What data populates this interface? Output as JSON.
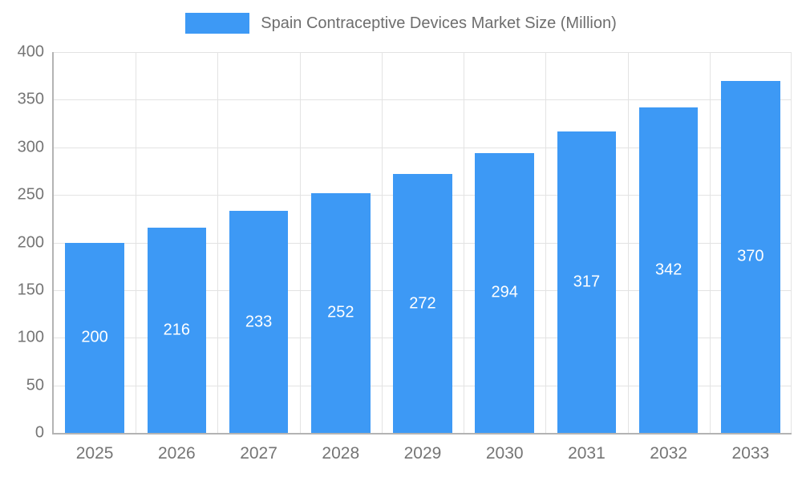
{
  "legend": {
    "title": "Spain Contraceptive Devices Market Size (Million)"
  },
  "colors": {
    "bar": "#3d99f5",
    "grid": "#e3e3e3",
    "axis": "#b3b3b3",
    "text": "#757575",
    "bar_label": "#ffffff"
  },
  "chart_data": {
    "type": "bar",
    "title": "Spain Contraceptive Devices Market Size (Million)",
    "categories": [
      "2025",
      "2026",
      "2027",
      "2028",
      "2029",
      "2030",
      "2031",
      "2032",
      "2033"
    ],
    "values": [
      200,
      216,
      233,
      252,
      272,
      294,
      317,
      342,
      370
    ],
    "xlabel": "",
    "ylabel": "",
    "ylim": [
      0,
      400
    ],
    "ytick_step": 50,
    "yticks": [
      0,
      50,
      100,
      150,
      200,
      250,
      300,
      350,
      400
    ],
    "grid": true,
    "legend_position": "top",
    "bar_label_position": "inside-center"
  }
}
